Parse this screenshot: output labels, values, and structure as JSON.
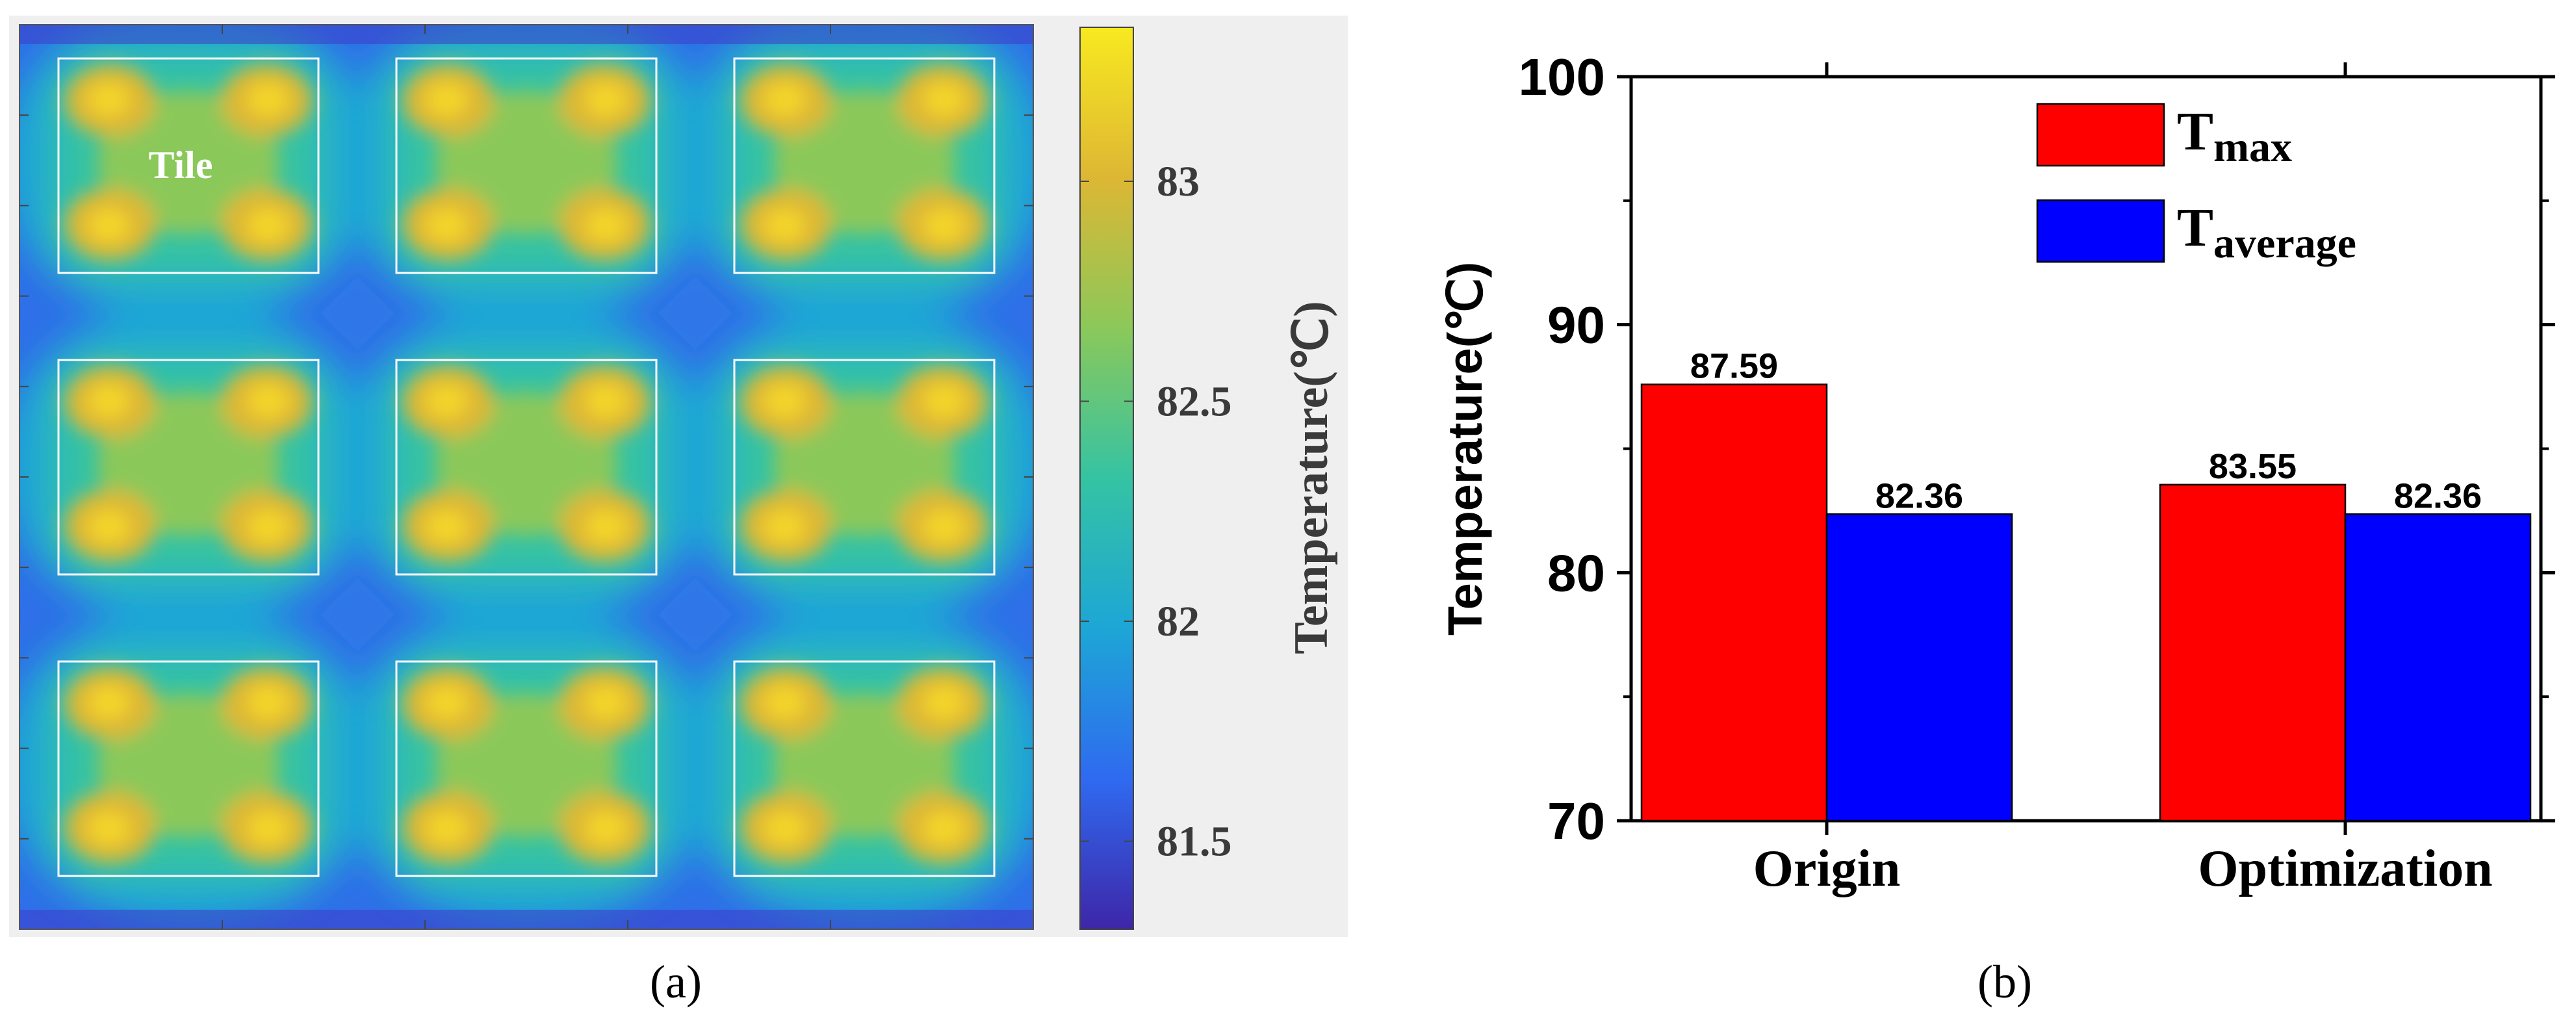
{
  "panel_a": {
    "label": "(a)",
    "tile_label": "Tile",
    "colorbar": {
      "title": "Temperature(℃)",
      "ticks": [
        "81.5",
        "82",
        "82.5",
        "83"
      ],
      "tick_values": [
        81.5,
        82,
        82.5,
        83
      ],
      "range": [
        81.3,
        83.35
      ],
      "colormap": [
        "#3e26a8",
        "#2f6af0",
        "#1da6d6",
        "#35c3a3",
        "#8bc85a",
        "#ddb734",
        "#f8e920"
      ]
    }
  },
  "panel_b": {
    "label": "(b)"
  },
  "chart_data": [
    {
      "type": "heatmap",
      "description_labels": {
        "tile": "Tile"
      },
      "colorbar_title": "Temperature(℃)",
      "colorbar_ticks": [
        81.5,
        82,
        82.5,
        83
      ],
      "value_range": [
        81.3,
        83.35
      ],
      "tile_grid": [
        3,
        3
      ]
    },
    {
      "type": "bar",
      "title": "",
      "categories": [
        "Origin",
        "Optimization"
      ],
      "series": [
        {
          "name": "T",
          "subscript": "max",
          "color": "#ff0000",
          "values": [
            87.59,
            83.55
          ],
          "labels": [
            "87.59",
            "83.55"
          ]
        },
        {
          "name": "T",
          "subscript": "average",
          "color": "#0000ff",
          "values": [
            82.36,
            82.36
          ],
          "labels": [
            "82.36",
            "82.36"
          ]
        }
      ],
      "xlabel": "",
      "ylabel": "Temperature(℃)",
      "ylim": [
        70,
        100
      ],
      "yticks": [
        70,
        80,
        90,
        100
      ],
      "ytick_labels": [
        "70",
        "80",
        "90",
        "100"
      ],
      "legend": "top-right"
    }
  ]
}
